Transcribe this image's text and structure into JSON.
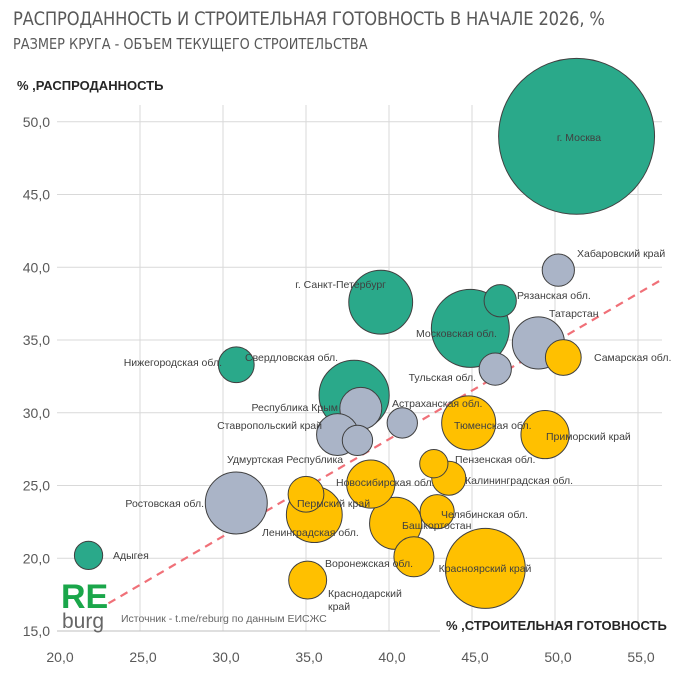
{
  "chart_data": {
    "type": "bubble",
    "title": "РАСПРОДАННОСТЬ И СТРОИТЕЛЬНАЯ ГОТОВНОСТЬ В НАЧАЛЕ 2026, %",
    "subtitle": "РАЗМЕР КРУГА - ОБЪЕМ ТЕКУЩЕГО СТРОИТЕЛЬСТВА",
    "xlabel": "% ,СТРОИТЕЛЬНАЯ ГОТОВНОСТЬ",
    "ylabel": "% ,РАСПРОДАННОСТЬ",
    "xlim": [
      20,
      56.5
    ],
    "ylim": [
      15,
      51.5
    ],
    "xticks": [
      "20,0",
      "25,0",
      "30,0",
      "35,0",
      "40,0",
      "45,0",
      "50,0",
      "55,0"
    ],
    "yticks": [
      "15,0",
      "20,0",
      "25,0",
      "30,0",
      "35,0",
      "40,0",
      "45,0",
      "50,0"
    ],
    "grid": true,
    "colors": {
      "green": "#2aa98a",
      "gray": "#aab4c7",
      "yellow": "#ffc000",
      "trend": "#f07078"
    },
    "trendline": {
      "style": "dashed",
      "from": [
        23.1,
        16.9
      ],
      "to": [
        56.5,
        39.2
      ]
    },
    "points": [
      {
        "label": "г. Москва",
        "x": 51.3,
        "y": 49.0,
        "size": 60.8,
        "color": "green"
      },
      {
        "label": "Хабаровский край",
        "x": 50.2,
        "y": 39.8,
        "size": 2.6,
        "color": "gray"
      },
      {
        "label": "Рязанская обл.",
        "x": 46.7,
        "y": 37.7,
        "size": 2.6,
        "color": "green"
      },
      {
        "label": "г. Санкт-Петербург",
        "x": 39.5,
        "y": 37.6,
        "size": 10.2,
        "color": "green"
      },
      {
        "label": "Московская обл.",
        "x": 44.9,
        "y": 35.8,
        "size": 15.2,
        "color": "green"
      },
      {
        "label": "Татарстан",
        "x": 49.0,
        "y": 34.8,
        "size": 6.8,
        "color": "gray"
      },
      {
        "label": "Самарская обл.",
        "x": 50.5,
        "y": 33.8,
        "size": 3.2,
        "color": "yellow"
      },
      {
        "label": "Тульская обл.",
        "x": 46.4,
        "y": 33.0,
        "size": 2.6,
        "color": "gray"
      },
      {
        "label": "Нижегородская обл.",
        "x": 30.8,
        "y": 33.3,
        "size": 3.2,
        "color": "green"
      },
      {
        "label": "Свердловская обл.",
        "x": 37.9,
        "y": 31.2,
        "size": 12.3,
        "color": "green"
      },
      {
        "label": "Республика Крым",
        "x": 38.3,
        "y": 30.3,
        "size": 4.4,
        "color": "gray"
      },
      {
        "label": "Астраханская обл.",
        "x": 40.8,
        "y": 29.3,
        "size": 2.3,
        "color": "gray"
      },
      {
        "label": "Тюменская обл.",
        "x": 44.8,
        "y": 29.3,
        "size": 7.3,
        "color": "yellow"
      },
      {
        "label": "Приморский край",
        "x": 49.4,
        "y": 28.5,
        "size": 5.8,
        "color": "yellow"
      },
      {
        "label": "Ставропольский край",
        "x": 36.9,
        "y": 28.5,
        "size": 4.4,
        "color": "gray"
      },
      {
        "label": "Удмуртская Республика",
        "x": 38.1,
        "y": 28.1,
        "size": 2.3,
        "color": "gray"
      },
      {
        "label": "Пензенская обл.",
        "x": 42.7,
        "y": 26.5,
        "size": 2.0,
        "color": "yellow"
      },
      {
        "label": "Калининградская обл.",
        "x": 43.6,
        "y": 25.5,
        "size": 2.9,
        "color": "yellow"
      },
      {
        "label": "Новосибирская обл.",
        "x": 38.9,
        "y": 25.1,
        "size": 5.8,
        "color": "yellow"
      },
      {
        "label": "Ростовская обл.",
        "x": 30.8,
        "y": 23.8,
        "size": 9.6,
        "color": "gray"
      },
      {
        "label": "Пермский край",
        "x": 35.0,
        "y": 24.4,
        "size": 3.2,
        "color": "yellow"
      },
      {
        "label": "Ленинградская обл.",
        "x": 35.5,
        "y": 23.0,
        "size": 7.8,
        "color": "yellow"
      },
      {
        "label": "Челябинская обл.",
        "x": 42.9,
        "y": 23.2,
        "size": 2.9,
        "color": "yellow"
      },
      {
        "label": "Башкортостан",
        "x": 40.4,
        "y": 22.4,
        "size": 6.8,
        "color": "yellow"
      },
      {
        "label": "Воронежская обл.",
        "x": 41.5,
        "y": 20.1,
        "size": 4.0,
        "color": "yellow"
      },
      {
        "label": "Краснодарский край",
        "x": 45.8,
        "y": 19.3,
        "size": 16.0,
        "color": "yellow"
      },
      {
        "label": "Красноярский край",
        "x": 35.1,
        "y": 18.5,
        "size": 3.6,
        "color": "yellow"
      },
      {
        "label": "Адыгея",
        "x": 21.9,
        "y": 20.2,
        "size": 2.0,
        "color": "green"
      }
    ]
  },
  "logo": {
    "top": "RE",
    "bottom": "burg"
  },
  "source": "Источник - t.me/reburg по данным ЕИСЖС"
}
